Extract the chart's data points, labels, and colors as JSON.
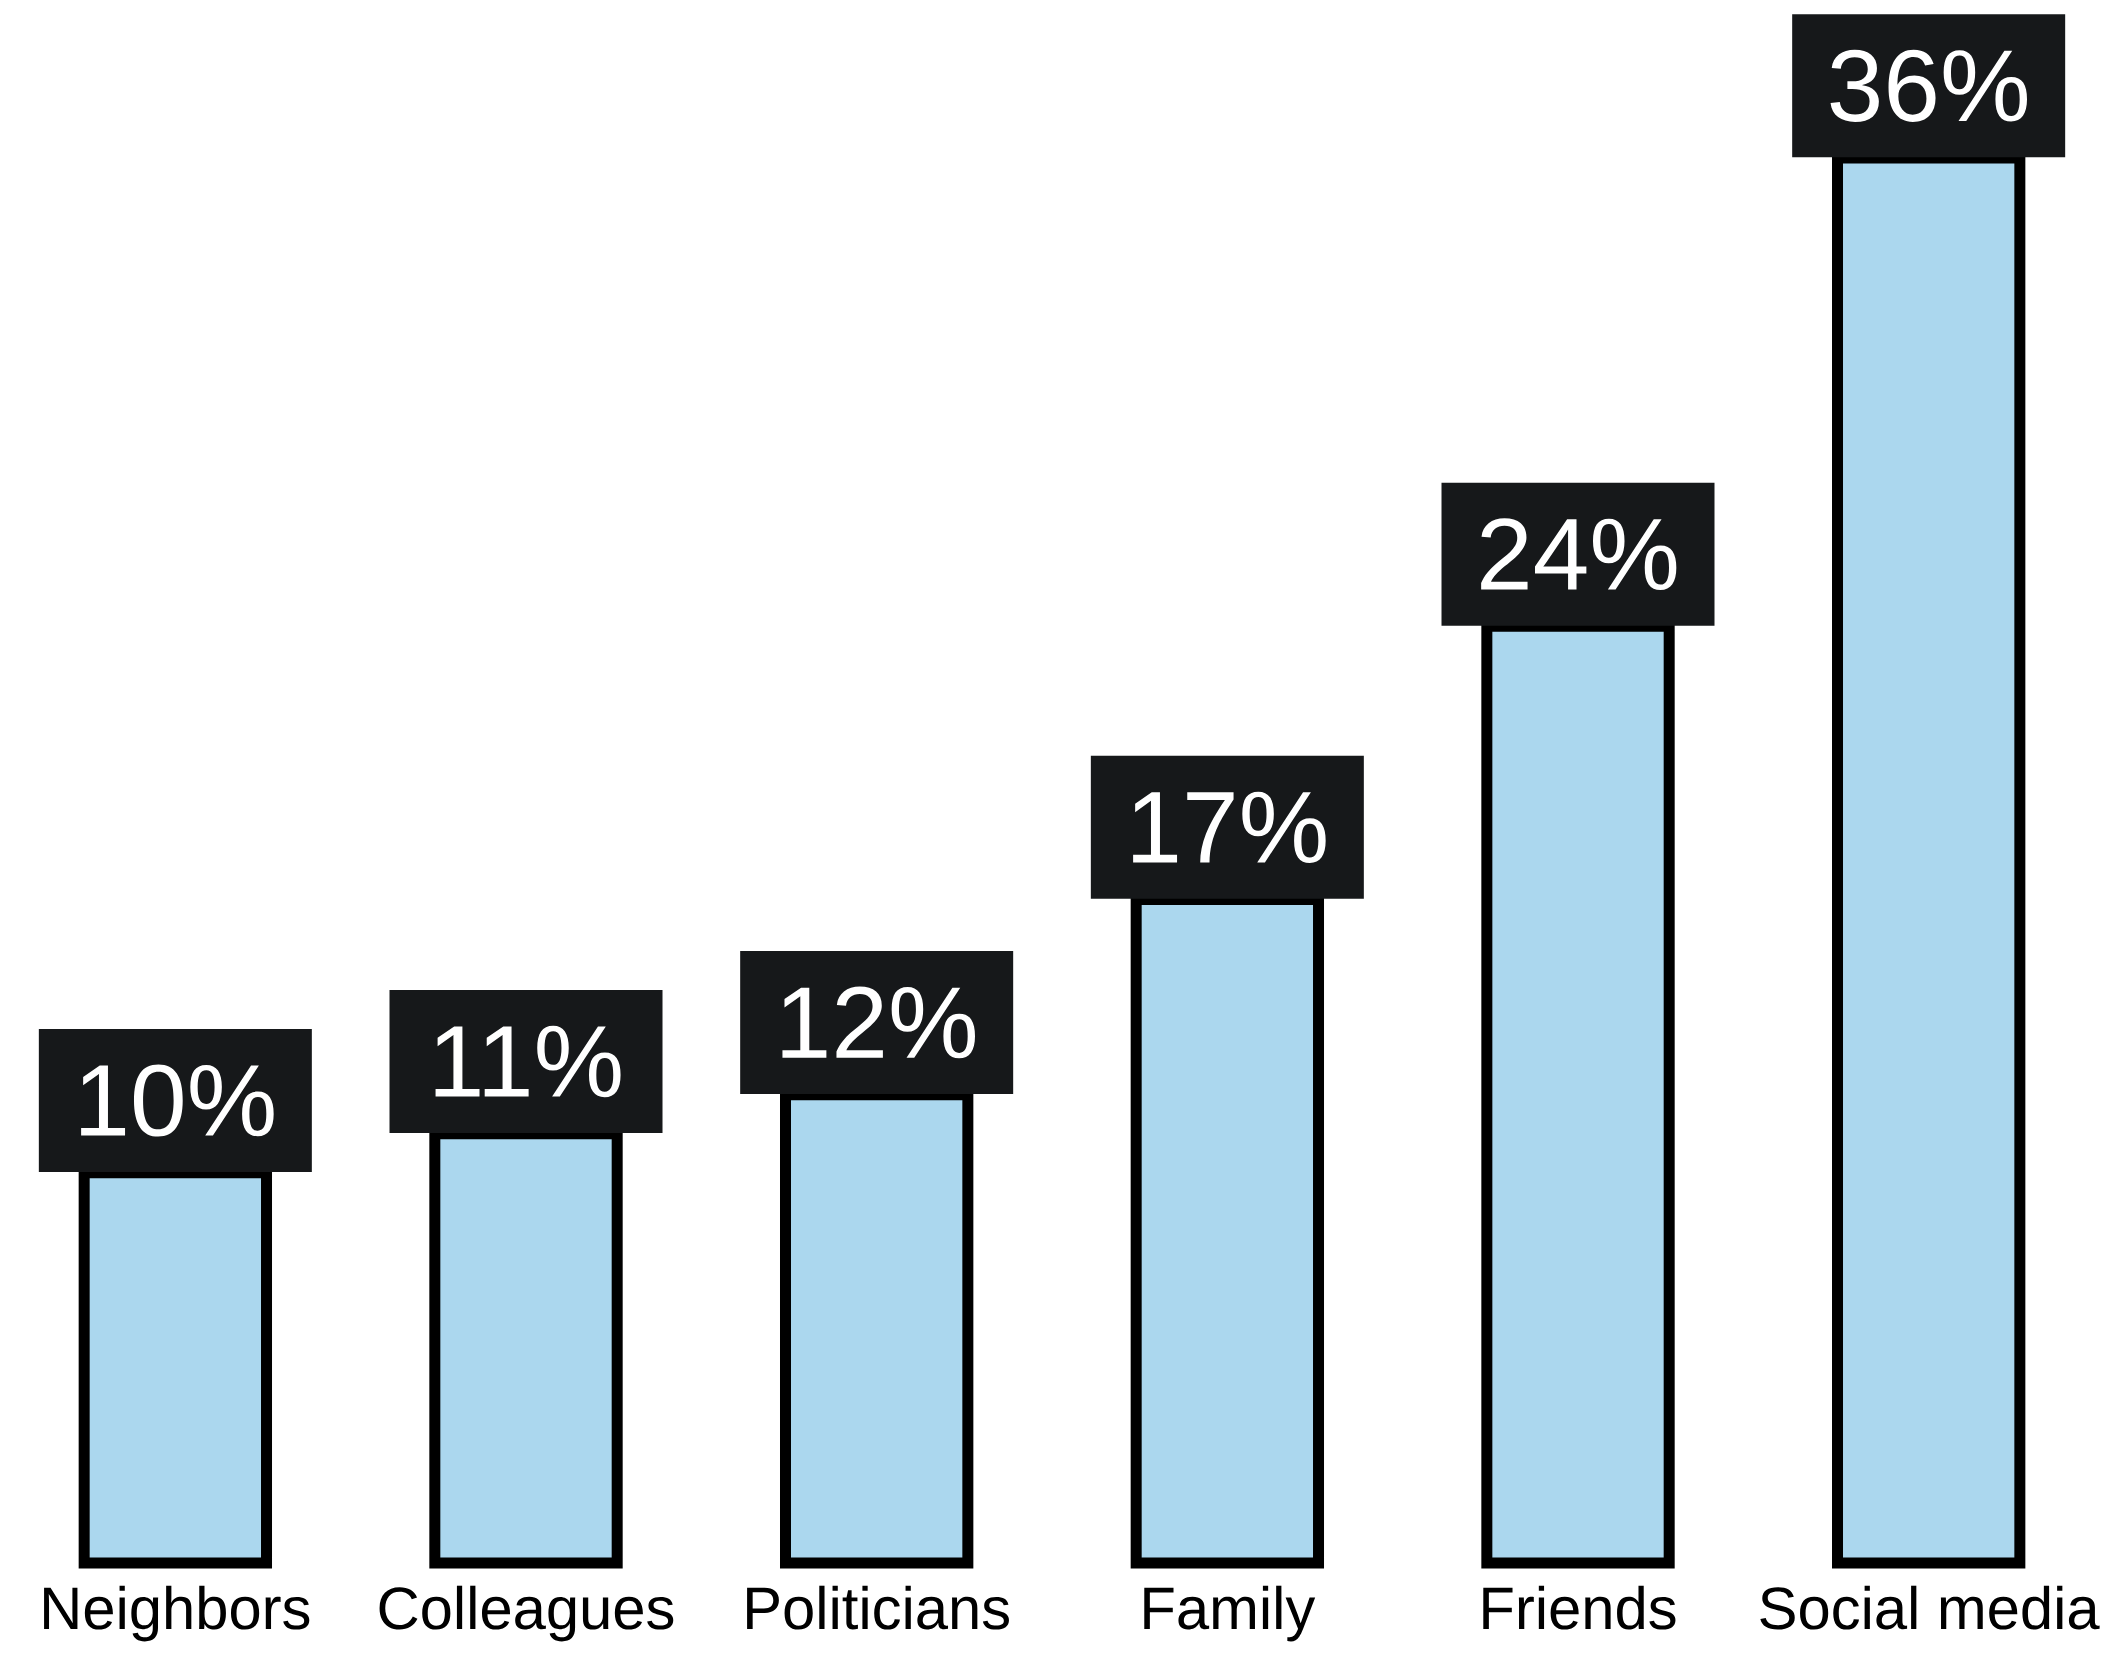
{
  "chart_data": {
    "type": "bar",
    "categories": [
      "Neighbors",
      "Colleagues",
      "Politicians",
      "Family",
      "Friends",
      "Social media"
    ],
    "values": [
      10,
      11,
      12,
      17,
      24,
      36
    ],
    "value_labels": [
      "10%",
      "11%",
      "12%",
      "17%",
      "24%",
      "36%"
    ],
    "color": "#abd7ee"
  }
}
